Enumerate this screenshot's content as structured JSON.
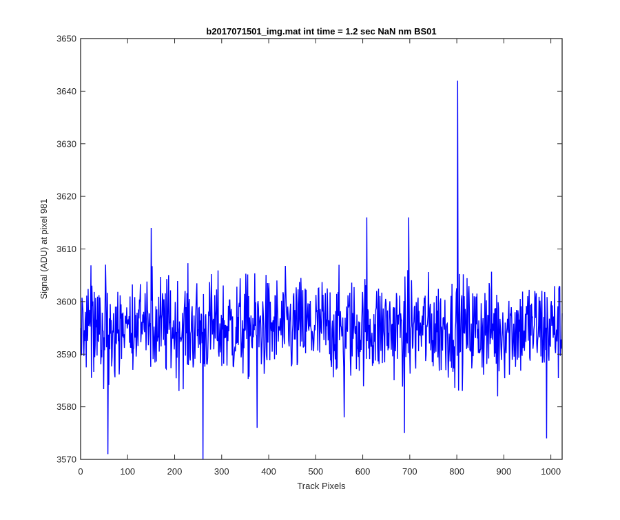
{
  "chart_data": {
    "type": "line",
    "title": "b2017071501_img.mat int time = 1.2 sec  NaN nm BS01",
    "xlabel": "Track Pixels",
    "ylabel": "Signal (ADU) at pixel 981",
    "xlim": [
      0,
      1024
    ],
    "ylim": [
      3570,
      3650
    ],
    "xticks": [
      0,
      100,
      200,
      300,
      400,
      500,
      600,
      700,
      800,
      900,
      1000
    ],
    "yticks": [
      3570,
      3580,
      3590,
      3600,
      3610,
      3620,
      3630,
      3640,
      3650
    ],
    "grid": false,
    "legend": "none",
    "series": [
      {
        "color": "#0000ff",
        "n_points": 1024,
        "mean": 3595,
        "baseline_range": [
          3580,
          3610
        ],
        "notable_points": [
          {
            "x": 58,
            "y": 3571
          },
          {
            "x": 150,
            "y": 3614
          },
          {
            "x": 260,
            "y": 3570
          },
          {
            "x": 375,
            "y": 3576
          },
          {
            "x": 560,
            "y": 3578
          },
          {
            "x": 608,
            "y": 3616
          },
          {
            "x": 688,
            "y": 3575
          },
          {
            "x": 697,
            "y": 3616
          },
          {
            "x": 801,
            "y": 3642
          },
          {
            "x": 886,
            "y": 3582
          },
          {
            "x": 990,
            "y": 3574
          }
        ]
      }
    ]
  }
}
